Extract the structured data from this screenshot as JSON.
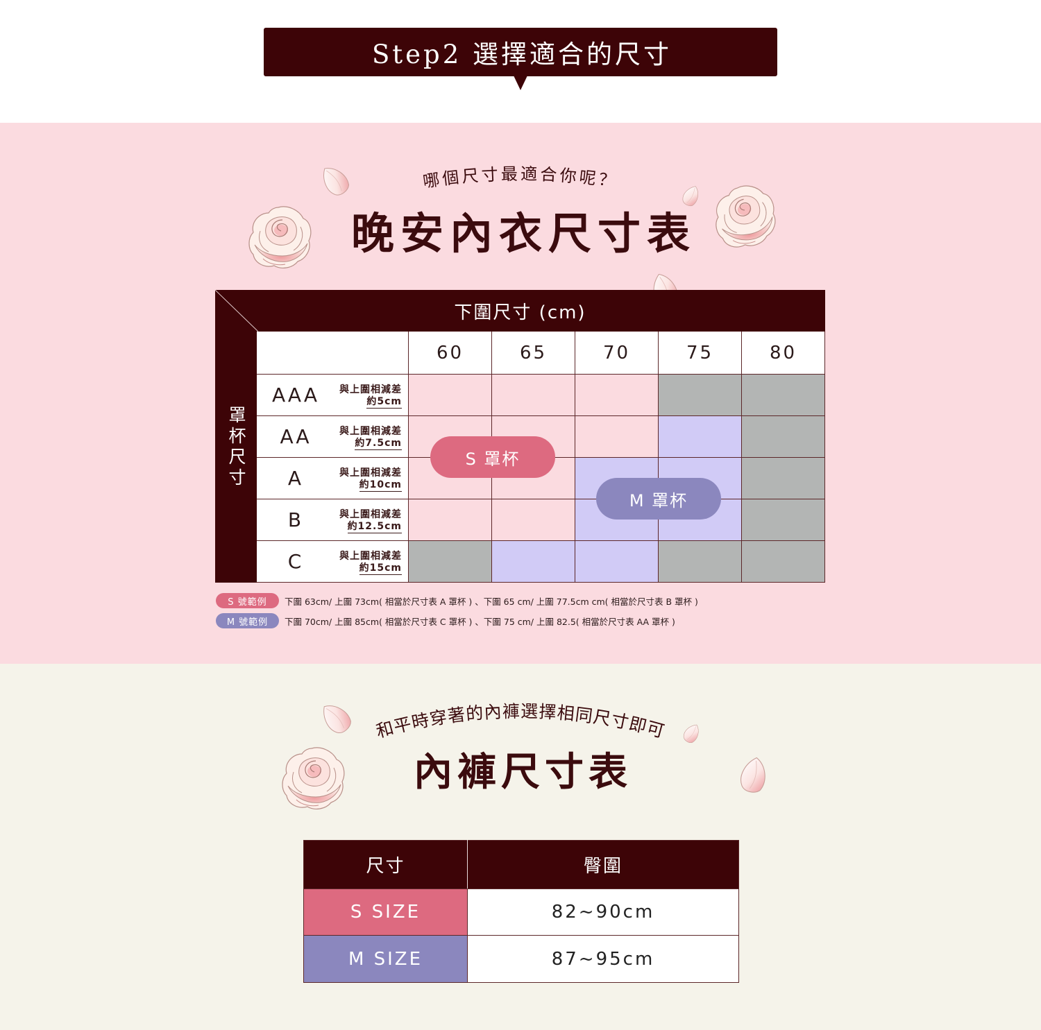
{
  "step_banner": {
    "label": "Step2 選擇適合的尺寸"
  },
  "bra_section": {
    "subtitle": "哪個尺寸最適合你呢？",
    "title": "晚安內衣尺寸表",
    "table": {
      "band_header": "下圍尺寸 (cm)",
      "cup_header": "罩杯尺寸",
      "band_sizes": [
        "60",
        "65",
        "70",
        "75",
        "80"
      ],
      "rows": [
        {
          "cup": "AAA",
          "diff_label": "與上圍相減差",
          "diff_value": "約5cm",
          "cells": [
            "S",
            "S",
            "S",
            "none",
            "none"
          ]
        },
        {
          "cup": "AA",
          "diff_label": "與上圍相減差",
          "diff_value": "約7.5cm",
          "cells": [
            "S",
            "S",
            "S",
            "M",
            "none"
          ]
        },
        {
          "cup": "A",
          "diff_label": "與上圍相減差",
          "diff_value": "約10cm",
          "cells": [
            "S",
            "S",
            "M",
            "M",
            "none"
          ]
        },
        {
          "cup": "B",
          "diff_label": "與上圍相減差",
          "diff_value": "約12.5cm",
          "cells": [
            "S",
            "S",
            "M",
            "M",
            "none"
          ]
        },
        {
          "cup": "C",
          "diff_label": "與上圍相減差",
          "diff_value": "約15cm",
          "cells": [
            "none",
            "M",
            "M",
            "none",
            "none"
          ]
        }
      ],
      "s_cup_label": "S 罩杯",
      "m_cup_label": "M 罩杯"
    },
    "examples": [
      {
        "tag": "S 號範例",
        "text": "下圍 63cm/ 上圍 73cm( 相當於尺寸表 A 罩杯 ) 、下圍 65 cm/ 上圍 77.5cm cm( 相當於尺寸表 B 罩杯 )"
      },
      {
        "tag": "M 號範例",
        "text": "下圍 70cm/ 上圍 85cm( 相當於尺寸表 C 罩杯 ) 、下圍 75 cm/ 上圍 82.5( 相當於尺寸表 AA 罩杯 )"
      }
    ]
  },
  "panty_section": {
    "subtitle": "和平時穿著的內褲選擇相同尺寸即可",
    "title": "內褲尺寸表",
    "table": {
      "headers": [
        "尺寸",
        "臀圍"
      ],
      "rows": [
        {
          "size": "S SIZE",
          "hip": "82~90cm"
        },
        {
          "size": "M SIZE",
          "hip": "87~95cm"
        }
      ]
    }
  },
  "colors": {
    "maroon": "#3d0407",
    "s_accent": "#dd6a80",
    "m_accent": "#8b87be",
    "s_cell": "#fbdbe0",
    "m_cell": "#d1cbf6",
    "unavailable_cell": "#b3b5b4",
    "pink_background": "#fbdbe0",
    "cream_background": "#f5f3ea"
  }
}
